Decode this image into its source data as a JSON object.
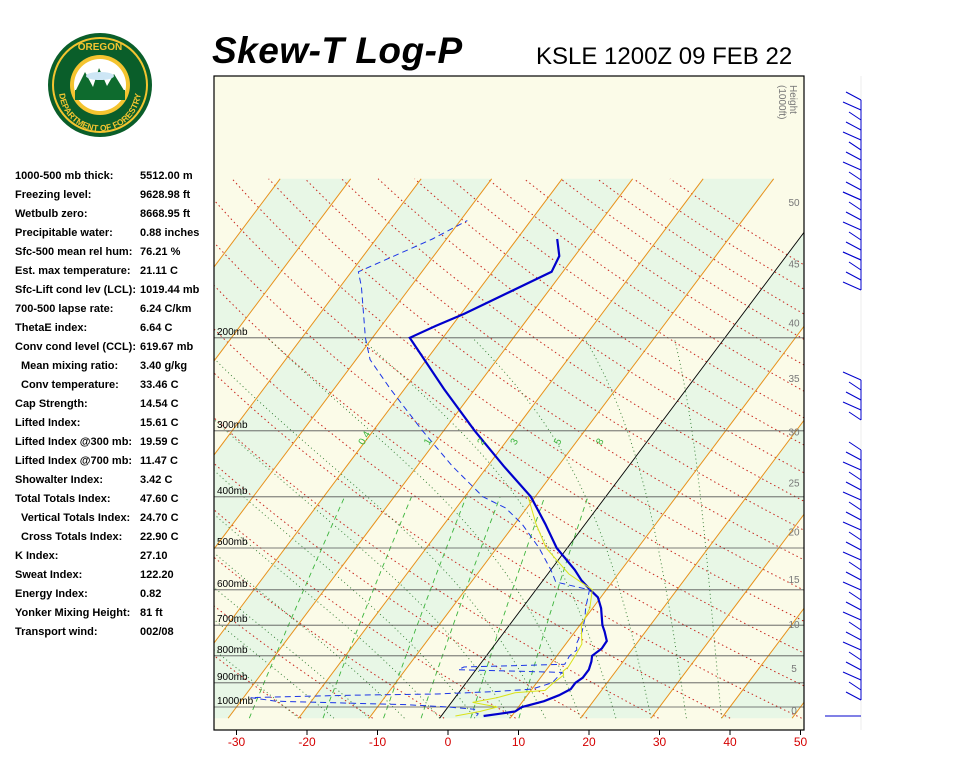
{
  "header": {
    "title": "Skew-T Log-P",
    "station_time": "KSLE 1200Z 09 FEB 22"
  },
  "logo": {
    "text_top": "OREGON",
    "text_bottom": "DEPARTMENT OF FORESTRY",
    "colors": {
      "ring": "#0a5e2a",
      "inner": "#f4c430",
      "trees": "#0e6b2e"
    }
  },
  "indices": [
    {
      "label": "1000-500 mb thick:",
      "value": "5512.00 m",
      "indent": false
    },
    {
      "label": "Freezing level:",
      "value": "9628.98 ft",
      "indent": false
    },
    {
      "label": "Wetbulb zero:",
      "value": "8668.95 ft",
      "indent": false
    },
    {
      "label": "Precipitable water:",
      "value": "0.88 inches",
      "indent": false
    },
    {
      "label": "Sfc-500 mean rel hum:",
      "value": "76.21 %",
      "indent": false
    },
    {
      "label": "Est. max temperature:",
      "value": "21.11 C",
      "indent": false
    },
    {
      "label": "Sfc-Lift cond lev (LCL):",
      "value": "1019.44 mb",
      "indent": false
    },
    {
      "label": "700-500 lapse rate:",
      "value": "6.24 C/km",
      "indent": false
    },
    {
      "label": "ThetaE index:",
      "value": "6.64 C",
      "indent": false
    },
    {
      "label": "Conv cond level (CCL):",
      "value": "619.67 mb",
      "indent": false
    },
    {
      "label": "Mean mixing ratio:",
      "value": "3.40 g/kg",
      "indent": true
    },
    {
      "label": "Conv temperature:",
      "value": "33.46 C",
      "indent": true
    },
    {
      "label": "Cap Strength:",
      "value": "14.54 C",
      "indent": false
    },
    {
      "label": "Lifted Index:",
      "value": "15.61 C",
      "indent": false
    },
    {
      "label": "Lifted Index @300 mb:",
      "value": "19.59 C",
      "indent": false
    },
    {
      "label": "Lifted Index @700 mb:",
      "value": "11.47 C",
      "indent": false
    },
    {
      "label": "Showalter Index:",
      "value": "3.42 C",
      "indent": false
    },
    {
      "label": "Total Totals Index:",
      "value": "47.60 C",
      "indent": false
    },
    {
      "label": "Vertical Totals Index:",
      "value": "24.70 C",
      "indent": true
    },
    {
      "label": "Cross Totals Index:",
      "value": "22.90 C",
      "indent": true
    },
    {
      "label": "K Index:",
      "value": "27.10",
      "indent": false
    },
    {
      "label": "Sweat Index:",
      "value": "122.20",
      "indent": false
    },
    {
      "label": "Energy Index:",
      "value": "0.82",
      "indent": false
    },
    {
      "label": "Yonker Mixing Height:",
      "value": "81 ft",
      "indent": false
    },
    {
      "label": "Transport wind:",
      "value": "002/08",
      "indent": false
    }
  ],
  "chart_data": {
    "type": "line",
    "subtype": "skew-t log-p",
    "x_axis": {
      "ticks": [
        -30,
        -20,
        -10,
        0,
        10,
        20,
        30,
        40,
        50
      ],
      "range": [
        -32,
        50
      ]
    },
    "y_axis": {
      "scale": "log",
      "range_mb": [
        1050,
        100
      ],
      "pressure_levels": [
        1000,
        900,
        800,
        700,
        600,
        500,
        400,
        300,
        200
      ],
      "pressure_labels": [
        "1000mb",
        "900mb",
        "800mb",
        "700mb",
        "600mb",
        "500mb",
        "400mb",
        "300mb",
        "200mb"
      ]
    },
    "height_axis": {
      "label_line1": "Height",
      "label_line2": "(1000ft)",
      "ticks": [
        0,
        5,
        10,
        15,
        20,
        25,
        30,
        35,
        40,
        45,
        50
      ]
    },
    "mixing_ratio_labels": [
      "0.4",
      "1",
      "2",
      "3",
      "5",
      "8"
    ],
    "series": [
      {
        "style": "thick-solid",
        "color": "#0000cc",
        "points": [
          [
            1040,
            6
          ],
          [
            1030,
            8
          ],
          [
            1020,
            10
          ],
          [
            1000,
            10.5
          ],
          [
            975,
            13
          ],
          [
            950,
            14.5
          ],
          [
            925,
            15.5
          ],
          [
            900,
            15.5
          ],
          [
            880,
            16
          ],
          [
            850,
            16
          ],
          [
            820,
            15.5
          ],
          [
            800,
            15
          ],
          [
            775,
            15.6
          ],
          [
            750,
            15.5
          ],
          [
            720,
            14.2
          ],
          [
            700,
            13.2
          ],
          [
            650,
            11.2
          ],
          [
            620,
            9.6
          ],
          [
            600,
            7.7
          ],
          [
            575,
            5.4
          ],
          [
            550,
            3.4
          ],
          [
            500,
            -1.5
          ],
          [
            450,
            -5.7
          ],
          [
            400,
            -10.6
          ],
          [
            350,
            -17.7
          ],
          [
            300,
            -25.6
          ],
          [
            250,
            -34.4
          ],
          [
            200,
            -44.7
          ],
          [
            190,
            -42.3
          ],
          [
            180,
            -39.5
          ],
          [
            150,
            -31.6
          ],
          [
            140,
            -32.2
          ],
          [
            130,
            -34.3
          ]
        ]
      },
      {
        "style": "thin-dashed",
        "color": "#1c36e6",
        "points": [
          [
            1040,
            5
          ],
          [
            1030,
            5
          ],
          [
            1020,
            4
          ],
          [
            1010,
            4
          ],
          [
            1000,
            0
          ],
          [
            990,
            -6
          ],
          [
            975,
            -25
          ],
          [
            960,
            -29
          ],
          [
            950,
            -15
          ],
          [
            945,
            -3
          ],
          [
            935,
            5
          ],
          [
            925,
            10
          ],
          [
            900,
            12.2
          ],
          [
            860,
            12.5
          ],
          [
            850,
            -2.5
          ],
          [
            840,
            -2
          ],
          [
            830,
            12
          ],
          [
            800,
            11.8
          ],
          [
            780,
            12.2
          ],
          [
            760,
            11.5
          ],
          [
            720,
            11
          ],
          [
            700,
            10.5
          ],
          [
            680,
            10
          ],
          [
            650,
            9
          ],
          [
            600,
            7.6
          ],
          [
            580,
            2
          ],
          [
            550,
            0
          ],
          [
            500,
            -4
          ],
          [
            450,
            -9
          ],
          [
            420,
            -13
          ],
          [
            400,
            -17.4
          ],
          [
            350,
            -25
          ],
          [
            300,
            -33
          ],
          [
            250,
            -42
          ],
          [
            220,
            -48
          ],
          [
            200,
            -51
          ],
          [
            160,
            -57
          ],
          [
            150,
            -59
          ],
          [
            130,
            -52
          ],
          [
            120,
            -49
          ]
        ]
      },
      {
        "style": "thin-yellow",
        "color": "#d9e21a",
        "points": [
          [
            1040,
            2
          ],
          [
            1020,
            5
          ],
          [
            1000,
            7
          ],
          [
            980,
            3
          ],
          [
            960,
            6
          ],
          [
            940,
            8
          ],
          [
            930,
            12
          ],
          [
            900,
            12.4
          ],
          [
            870,
            13
          ],
          [
            855,
            12.5
          ],
          [
            840,
            12.8
          ],
          [
            800,
            12.6
          ],
          [
            760,
            12.3
          ],
          [
            700,
            10.2
          ],
          [
            650,
            9.6
          ],
          [
            600,
            8
          ],
          [
            560,
            3
          ],
          [
            500,
            -3
          ],
          [
            450,
            -7
          ],
          [
            400,
            -11
          ]
        ]
      }
    ],
    "wind_barbs": {
      "count_note": "wind barb column at right edge",
      "groups": [
        [
          100,
          150
        ],
        [
          150,
          200
        ],
        [
          200,
          260
        ],
        [
          260,
          290
        ],
        [
          380,
          420
        ],
        [
          450,
          700
        ]
      ]
    }
  }
}
